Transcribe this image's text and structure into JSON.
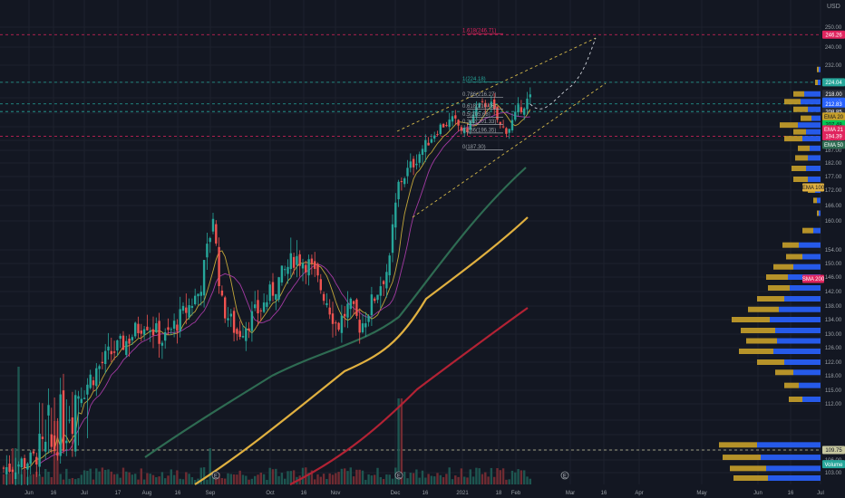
{
  "currency": "USD",
  "colors": {
    "background": "#131722",
    "grid": "#1e222d",
    "up": "#26a69a",
    "down": "#ef5350",
    "wick": "#8a8f98",
    "axis_text": "#9aa0a6",
    "ema20": "#c2a63a",
    "ema50": "#a33aa3",
    "ema100_line": "#e0b040",
    "ema200_line": "#b22234",
    "green_ma": "#2e6b52",
    "vp_blue": "#2962ff",
    "vp_gold": "#c8a02a"
  },
  "price_axis": {
    "ticks": [
      "250.00",
      "240.00",
      "232.00",
      "224.00",
      "216.00",
      "208.00",
      "200.00",
      "192.00",
      "187.00",
      "182.00",
      "177.00",
      "172.00",
      "166.00",
      "160.00",
      "154.00",
      "150.00",
      "146.00",
      "142.00",
      "138.00",
      "134.00",
      "130.00",
      "126.00",
      "122.00",
      "118.00",
      "115.00",
      "112.00",
      "109.75",
      "106.00",
      "103.00"
    ],
    "labels": [
      {
        "text": "246.26",
        "bg": "#e0245e",
        "fg": "#ffffff",
        "price": 246.26
      },
      {
        "text": "224.04",
        "bg": "#26a69a",
        "fg": "#ffffff",
        "price": 224.04
      },
      {
        "text": "218.00",
        "bg": "#2b2f3a",
        "fg": "#ffffff",
        "price": 218.0
      },
      {
        "text": "VWAP",
        "bg": "#2962ff",
        "fg": "#ffffff",
        "price": 214.0
      },
      {
        "text": "212.83",
        "bg": "#2962ff",
        "fg": "#ffffff",
        "price": 212.83
      },
      {
        "text": "208.85",
        "bg": "#2b2f3a",
        "fg": "#ffffff",
        "price": 208.85
      },
      {
        "text": "EMA 20",
        "bg": "#c8a02a",
        "fg": "#131722",
        "price": 206.0
      },
      {
        "text": "207.48",
        "bg": "#00c853",
        "fg": "#131722",
        "price": 201.5
      },
      {
        "text": "EMA 21",
        "bg": "#e0245e",
        "fg": "#ffffff",
        "price": 198.5
      },
      {
        "text": "194.39",
        "bg": "#e0245e",
        "fg": "#ffffff",
        "price": 194.39
      },
      {
        "text": "EMA 50",
        "bg": "#2e6b52",
        "fg": "#ffffff",
        "price": 189.8
      },
      {
        "text": "EMA 100",
        "bg": "#e0b040",
        "fg": "#131722",
        "price": 173.0
      },
      {
        "text": "SMA 200",
        "bg": "#e0245e",
        "fg": "#ffffff",
        "price": 145.5
      },
      {
        "text": "109.75",
        "bg": "#c8c8a0",
        "fg": "#131722",
        "price": 109.75
      },
      {
        "text": "Volume",
        "bg": "#26a69a",
        "fg": "#ffffff",
        "price": 105.0
      }
    ]
  },
  "time_axis": {
    "ticks": [
      "Jun",
      "16",
      "Jul",
      "17",
      "Aug",
      "16",
      "Sep",
      "Oct",
      "16",
      "Nov",
      "Dec",
      "16",
      "2021",
      "18",
      "Feb",
      "Mar",
      "16",
      "Apr",
      "May",
      "Jun",
      "16",
      "Jul"
    ]
  },
  "fib_levels": [
    {
      "label": "1.618(246.71)",
      "price": 246.71,
      "color": "#e0245e"
    },
    {
      "label": "1(224.18)",
      "price": 224.18,
      "color": "#26a69a"
    },
    {
      "label": "0.786(216.27)",
      "price": 216.27,
      "color": "#9aa0a6"
    },
    {
      "label": "0.618(210.05)",
      "price": 210.05,
      "color": "#9aa0a6"
    },
    {
      "label": "0.5(205.68)",
      "price": 205.68,
      "color": "#9aa0a6"
    },
    {
      "label": "0.382(201.33)",
      "price": 201.33,
      "color": "#9aa0a6"
    },
    {
      "label": "0.236(196.35)",
      "price": 196.35,
      "color": "#9aa0a6"
    },
    {
      "label": "0(187.30)",
      "price": 187.3,
      "color": "#9aa0a6"
    }
  ],
  "horizontal_lines": [
    {
      "price": 246.26,
      "color": "#e0245e"
    },
    {
      "price": 224.04,
      "color": "#26a69a"
    },
    {
      "price": 212.83,
      "color": "#26a69a"
    },
    {
      "price": 208.85,
      "color": "#26a69a"
    },
    {
      "price": 194.39,
      "color": "#e0245e"
    },
    {
      "price": 109.75,
      "color": "#c8c8a0"
    }
  ],
  "markers": [
    {
      "label": "E",
      "x_label": "Aug"
    },
    {
      "label": "E",
      "x_label": "Nov"
    },
    {
      "label": "E",
      "x_label": "Feb"
    }
  ]
}
